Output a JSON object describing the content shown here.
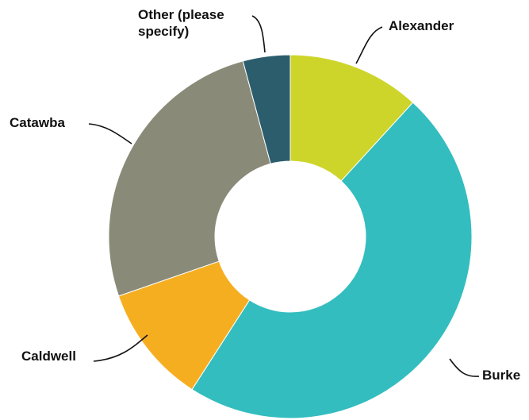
{
  "chart_data": {
    "type": "pie",
    "title": "",
    "legend": "none",
    "donut": true,
    "categories": [
      "Alexander",
      "Burke",
      "Caldwell",
      "Catawba",
      "Other (please specify)"
    ],
    "values": [
      11.8,
      47.3,
      10.6,
      26.1,
      4.2
    ],
    "colors": [
      "#cdd52a",
      "#33bdbf",
      "#f6ae21",
      "#8a8a78",
      "#2c5d6d"
    ],
    "labels": [
      {
        "lines": [
          "Alexander"
        ]
      },
      {
        "lines": [
          "Burke"
        ]
      },
      {
        "lines": [
          "Caldwell"
        ]
      },
      {
        "lines": [
          "Catawba"
        ]
      },
      {
        "lines": [
          "Other (please",
          "specify)"
        ]
      }
    ]
  }
}
